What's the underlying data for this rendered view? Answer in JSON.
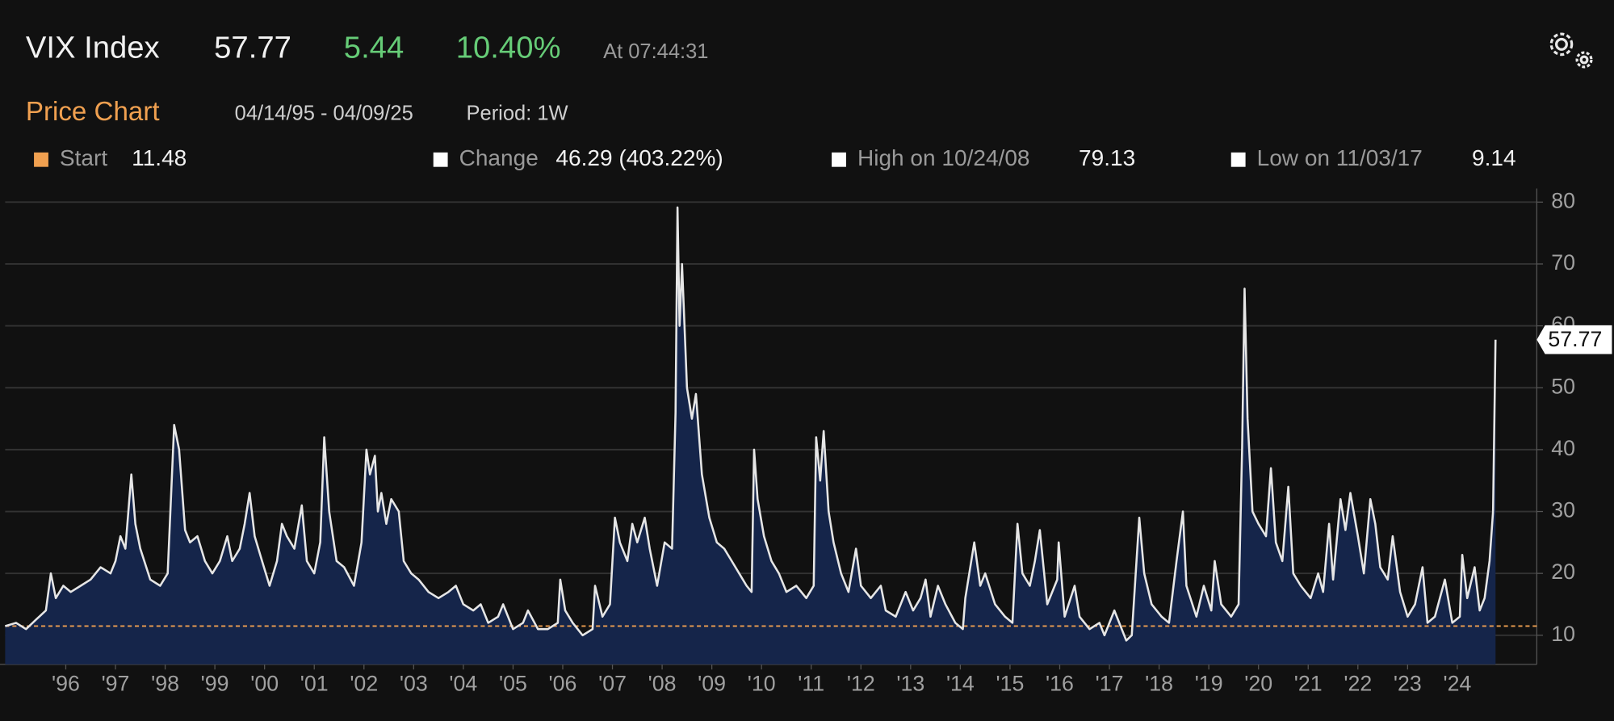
{
  "header": {
    "ticker": "VIX Index",
    "price": 57.77,
    "change": "5.44",
    "change_pct": "10.40%",
    "time": "At 07:44:31",
    "section": "Price Chart",
    "range": "04/14/95 - 04/09/25",
    "period": "Period: 1W"
  },
  "chart_data": {
    "type": "line",
    "color": "#e6e6e6",
    "area_color": "#15254a",
    "grid": true,
    "stats": {
      "start": {
        "label": "Start",
        "value": 11.48,
        "color": "#f0a050"
      },
      "change": {
        "label": "Change",
        "value": "46.29 (403.22%)"
      },
      "high": {
        "label": "High on 10/24/08",
        "value": 79.13
      },
      "low": {
        "label": "Low on 11/03/17",
        "value": 9.14
      }
    },
    "xlim": [
      1995.28,
      2026.1
    ],
    "xticks": [
      {
        "value": 1996.5,
        "label": "'96"
      },
      {
        "value": 1997.5,
        "label": "'97"
      },
      {
        "value": 1998.5,
        "label": "'98"
      },
      {
        "value": 1999.5,
        "label": "'99"
      },
      {
        "value": 2000.5,
        "label": "'00"
      },
      {
        "value": 2001.5,
        "label": "'01"
      },
      {
        "value": 2002.5,
        "label": "'02"
      },
      {
        "value": 2003.5,
        "label": "'03"
      },
      {
        "value": 2004.5,
        "label": "'04"
      },
      {
        "value": 2005.5,
        "label": "'05"
      },
      {
        "value": 2006.5,
        "label": "'06"
      },
      {
        "value": 2007.5,
        "label": "'07"
      },
      {
        "value": 2008.5,
        "label": "'08"
      },
      {
        "value": 2009.5,
        "label": "'09"
      },
      {
        "value": 2010.5,
        "label": "'10"
      },
      {
        "value": 2011.5,
        "label": "'11"
      },
      {
        "value": 2012.5,
        "label": "'12"
      },
      {
        "value": 2013.5,
        "label": "'13"
      },
      {
        "value": 2014.5,
        "label": "'14"
      },
      {
        "value": 2015.5,
        "label": "'15"
      },
      {
        "value": 2016.5,
        "label": "'16"
      },
      {
        "value": 2017.5,
        "label": "'17"
      },
      {
        "value": 2018.5,
        "label": "'18"
      },
      {
        "value": 2019.5,
        "label": "'19"
      },
      {
        "value": 2020.5,
        "label": "'20"
      },
      {
        "value": 2021.5,
        "label": "'21"
      },
      {
        "value": 2022.5,
        "label": "'22"
      },
      {
        "value": 2023.5,
        "label": "'23"
      },
      {
        "value": 2024.5,
        "label": "'24"
      }
    ],
    "ylim": [
      5.3,
      82.2
    ],
    "yticks": [
      10,
      20,
      30,
      40,
      50,
      60,
      70,
      80
    ],
    "x": [
      1995.28,
      1995.5,
      1995.7,
      1995.9,
      1996.1,
      1996.2,
      1996.3,
      1996.45,
      1996.6,
      1996.8,
      1997.0,
      1997.2,
      1997.4,
      1997.5,
      1997.6,
      1997.7,
      1997.82,
      1997.9,
      1998.0,
      1998.2,
      1998.4,
      1998.55,
      1998.68,
      1998.78,
      1998.9,
      1999.0,
      1999.15,
      1999.3,
      1999.45,
      1999.6,
      1999.75,
      1999.85,
      2000.0,
      2000.1,
      2000.2,
      2000.3,
      2000.45,
      2000.6,
      2000.75,
      2000.85,
      2000.95,
      2001.1,
      2001.25,
      2001.35,
      2001.5,
      2001.62,
      2001.7,
      2001.8,
      2001.95,
      2002.1,
      2002.3,
      2002.45,
      2002.55,
      2002.62,
      2002.72,
      2002.78,
      2002.85,
      2002.95,
      2003.05,
      2003.2,
      2003.3,
      2003.45,
      2003.6,
      2003.8,
      2004.0,
      2004.2,
      2004.35,
      2004.5,
      2004.7,
      2004.85,
      2005.0,
      2005.2,
      2005.3,
      2005.5,
      2005.7,
      2005.8,
      2006.0,
      2006.2,
      2006.4,
      2006.45,
      2006.55,
      2006.7,
      2006.9,
      2007.1,
      2007.15,
      2007.3,
      2007.45,
      2007.55,
      2007.65,
      2007.8,
      2007.9,
      2008.0,
      2008.15,
      2008.25,
      2008.4,
      2008.55,
      2008.7,
      2008.77,
      2008.81,
      2008.85,
      2008.9,
      2009.0,
      2009.1,
      2009.18,
      2009.3,
      2009.45,
      2009.6,
      2009.75,
      2009.9,
      2010.05,
      2010.2,
      2010.3,
      2010.35,
      2010.42,
      2010.55,
      2010.7,
      2010.85,
      2011.0,
      2011.2,
      2011.4,
      2011.55,
      2011.6,
      2011.68,
      2011.75,
      2011.85,
      2011.95,
      2012.1,
      2012.25,
      2012.4,
      2012.5,
      2012.7,
      2012.9,
      2013.0,
      2013.2,
      2013.4,
      2013.55,
      2013.7,
      2013.8,
      2013.9,
      2014.05,
      2014.2,
      2014.4,
      2014.55,
      2014.6,
      2014.78,
      2014.9,
      2015.0,
      2015.2,
      2015.4,
      2015.55,
      2015.65,
      2015.75,
      2015.9,
      2016.0,
      2016.1,
      2016.25,
      2016.45,
      2016.48,
      2016.6,
      2016.8,
      2016.9,
      2017.1,
      2017.3,
      2017.4,
      2017.6,
      2017.84,
      2017.95,
      2018.1,
      2018.2,
      2018.35,
      2018.55,
      2018.7,
      2018.85,
      2018.98,
      2019.05,
      2019.25,
      2019.4,
      2019.55,
      2019.62,
      2019.75,
      2019.95,
      2020.1,
      2020.17,
      2020.22,
      2020.28,
      2020.38,
      2020.5,
      2020.65,
      2020.75,
      2020.85,
      2020.98,
      2021.1,
      2021.2,
      2021.35,
      2021.55,
      2021.7,
      2021.8,
      2021.92,
      2022.0,
      2022.15,
      2022.25,
      2022.35,
      2022.5,
      2022.62,
      2022.75,
      2022.85,
      2022.95,
      2023.1,
      2023.2,
      2023.35,
      2023.5,
      2023.65,
      2023.8,
      2023.9,
      2024.05,
      2024.25,
      2024.4,
      2024.55,
      2024.6,
      2024.7,
      2024.85,
      2024.95,
      2025.05,
      2025.15,
      2025.22,
      2025.27
    ],
    "values": [
      11.48,
      12,
      11,
      12.5,
      14,
      20,
      16,
      18,
      17,
      18,
      19,
      21,
      20,
      22,
      26,
      24,
      36,
      28,
      24,
      19,
      18,
      20,
      44,
      40,
      27,
      25,
      26,
      22,
      20,
      22,
      26,
      22,
      24,
      28,
      33,
      26,
      22,
      18,
      22,
      28,
      26,
      24,
      31,
      22,
      20,
      25,
      42,
      30,
      22,
      21,
      18,
      25,
      40,
      36,
      39,
      30,
      33,
      28,
      32,
      30,
      22,
      20,
      19,
      17,
      16,
      17,
      18,
      15,
      14,
      15,
      12,
      13,
      15,
      11,
      12,
      14,
      11,
      11,
      12,
      19,
      14,
      12,
      10,
      11,
      18,
      13,
      15,
      29,
      25,
      22,
      28,
      25,
      29,
      24,
      18,
      25,
      24,
      46,
      79.13,
      60,
      70,
      50,
      45,
      49,
      36,
      29,
      25,
      24,
      22,
      20,
      18,
      17,
      40,
      32,
      26,
      22,
      20,
      17,
      18,
      16,
      18,
      42,
      35,
      43,
      30,
      25,
      20,
      17,
      24,
      18,
      16,
      18,
      14,
      13,
      17,
      14,
      16,
      19,
      13,
      18,
      15,
      12,
      11,
      16,
      25,
      18,
      20,
      15,
      13,
      12,
      28,
      20,
      18,
      22,
      27,
      15,
      19,
      25,
      13,
      18,
      13,
      11,
      12,
      10,
      14,
      9.14,
      10,
      29,
      20,
      15,
      13,
      12,
      22,
      30,
      18,
      13,
      18,
      14,
      22,
      15,
      13,
      15,
      40,
      66,
      45,
      30,
      28,
      26,
      37,
      25,
      22,
      34,
      20,
      18,
      16,
      20,
      17,
      28,
      19,
      32,
      27,
      33,
      26,
      20,
      32,
      28,
      21,
      19,
      26,
      17,
      13,
      15,
      21,
      12,
      13,
      19,
      12,
      13,
      23,
      16,
      21,
      14,
      16,
      22,
      30,
      57.77
    ]
  }
}
